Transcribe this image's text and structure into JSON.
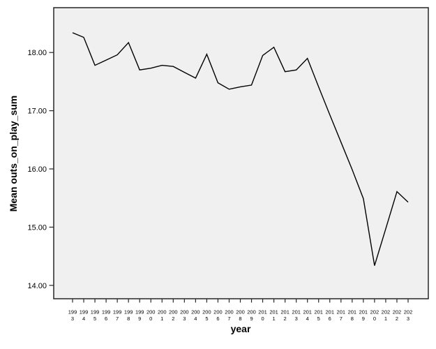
{
  "chart_data": {
    "type": "line",
    "title": "",
    "xlabel": "year",
    "ylabel": "Mean outs_on_play_sum",
    "x": [
      1993,
      1994,
      1995,
      1996,
      1997,
      1998,
      1999,
      2000,
      2001,
      2002,
      2003,
      2004,
      2005,
      2006,
      2007,
      2008,
      2009,
      2010,
      2011,
      2012,
      2013,
      2014,
      2015,
      2016,
      2017,
      2018,
      2019,
      2020,
      2021,
      2022,
      2023
    ],
    "series": [
      {
        "name": "Mean outs_on_play_sum",
        "values": [
          18.34,
          18.26,
          17.78,
          17.87,
          17.96,
          18.17,
          17.7,
          17.73,
          17.78,
          17.76,
          17.66,
          17.56,
          17.97,
          17.48,
          17.37,
          17.41,
          17.44,
          17.95,
          18.09,
          17.67,
          17.7,
          17.9,
          17.41,
          16.93,
          16.46,
          15.99,
          15.49,
          14.34,
          14.97,
          15.61,
          15.43
        ]
      }
    ],
    "yticks": [
      "14.00",
      "15.00",
      "16.00",
      "17.00",
      "18.00"
    ],
    "ylim": [
      13.77,
      18.77
    ],
    "grid": false,
    "legend": "none",
    "line_color": "#000000",
    "plot_bg": "#f0f0f0",
    "frame_color": "#262626",
    "tick_label_color": "#000000"
  }
}
